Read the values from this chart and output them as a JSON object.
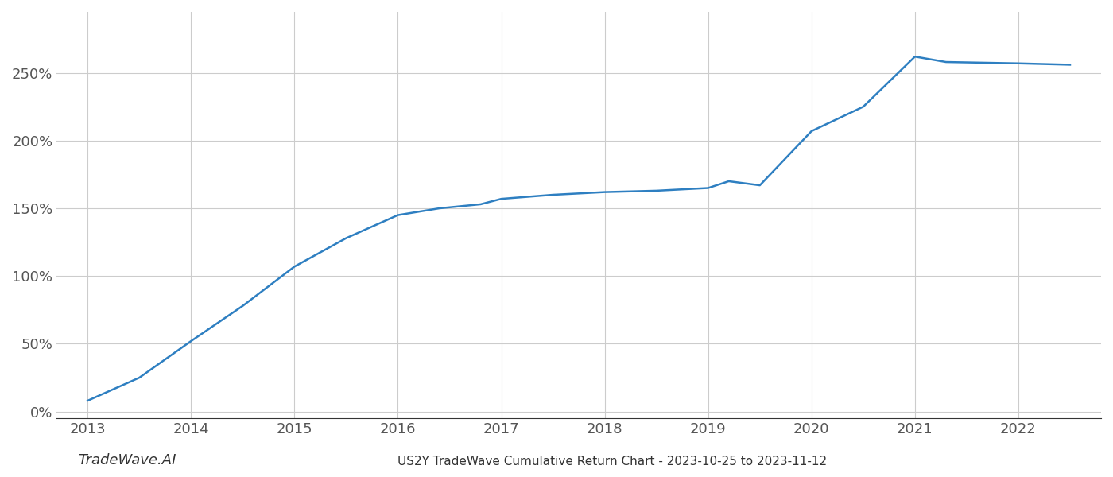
{
  "title": "US2Y TradeWave Cumulative Return Chart - 2023-10-25 to 2023-11-12",
  "watermark": "TradeWave.AI",
  "line_color": "#2e7fc1",
  "background_color": "#ffffff",
  "grid_color": "#cccccc",
  "x_values": [
    2013,
    2013.5,
    2014,
    2014.5,
    2015,
    2015.5,
    2016,
    2016.4,
    2016.8,
    2017,
    2017.5,
    2018,
    2018.5,
    2019,
    2019.2,
    2019.5,
    2020,
    2020.5,
    2021,
    2021.3,
    2022,
    2022.5
  ],
  "y_values": [
    8,
    25,
    52,
    78,
    107,
    128,
    145,
    150,
    153,
    157,
    160,
    162,
    163,
    165,
    170,
    167,
    207,
    225,
    262,
    258,
    257,
    256
  ],
  "xlim": [
    2012.7,
    2022.8
  ],
  "ylim": [
    -5,
    295
  ],
  "yticks": [
    0,
    50,
    100,
    150,
    200,
    250
  ],
  "ytick_labels": [
    "0%",
    "50%",
    "100%",
    "150%",
    "200%",
    "250%"
  ],
  "xticks": [
    2013,
    2014,
    2015,
    2016,
    2017,
    2018,
    2019,
    2020,
    2021,
    2022
  ],
  "line_width": 1.8,
  "title_fontsize": 11,
  "tick_fontsize": 13,
  "watermark_fontsize": 13,
  "tick_color": "#555555",
  "spine_bottom_color": "#333333"
}
